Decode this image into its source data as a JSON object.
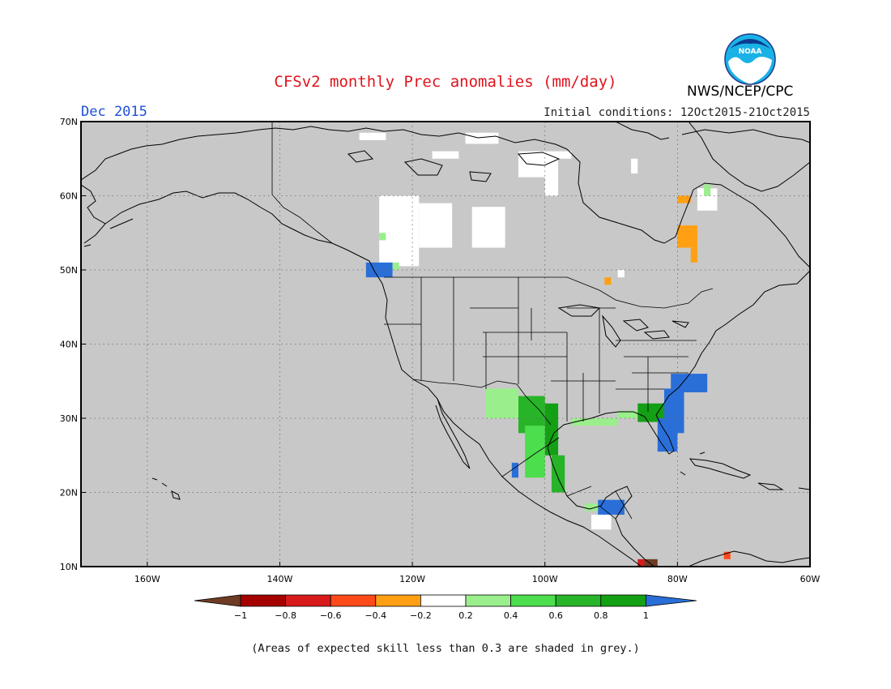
{
  "title": "CFSv2 monthly Prec anomalies (mm/day)",
  "month": "Dec 2015",
  "initial_conditions": "Initial conditions: 12Oct2015-21Oct2015",
  "agency": "NWS/NCEP/CPC",
  "logo_text": "NOAA",
  "footnote": "(Areas of expected skill less than 0.3 are shaded in grey.)",
  "map": {
    "lon_range": [
      -170,
      -60
    ],
    "lat_range": [
      10,
      70
    ],
    "lon_ticks": [
      {
        "v": -160,
        "label": "160W"
      },
      {
        "v": -140,
        "label": "140W"
      },
      {
        "v": -120,
        "label": "120W"
      },
      {
        "v": -100,
        "label": "100W"
      },
      {
        "v": -80,
        "label": "80W"
      },
      {
        "v": -60,
        "label": "60W"
      }
    ],
    "lat_ticks": [
      {
        "v": 10,
        "label": "10N"
      },
      {
        "v": 20,
        "label": "20N"
      },
      {
        "v": 30,
        "label": "30N"
      },
      {
        "v": 40,
        "label": "40N"
      },
      {
        "v": 50,
        "label": "50N"
      },
      {
        "v": 60,
        "label": "60N"
      },
      {
        "v": 70,
        "label": "70N"
      }
    ],
    "grid": true,
    "background_color": "#c8c8c8"
  },
  "colorbar": {
    "bins": [
      {
        "from": -1.0,
        "to": -0.8,
        "color": "#a50000"
      },
      {
        "from": -0.8,
        "to": -0.6,
        "color": "#d81a1a"
      },
      {
        "from": -0.6,
        "to": -0.4,
        "color": "#ff4a1a"
      },
      {
        "from": -0.4,
        "to": -0.2,
        "color": "#ffa014"
      },
      {
        "from": -0.2,
        "to": 0.2,
        "color": "#ffffff"
      },
      {
        "from": 0.2,
        "to": 0.4,
        "color": "#9aef8c"
      },
      {
        "from": 0.4,
        "to": 0.6,
        "color": "#4cde4c"
      },
      {
        "from": 0.6,
        "to": 0.8,
        "color": "#28b428"
      },
      {
        "from": 0.8,
        "to": 1.0,
        "color": "#14a014"
      }
    ],
    "low_color": "#6e3c24",
    "high_color": "#2a6fd8",
    "tick_labels": [
      "−1",
      "−0.8",
      "−0.6",
      "−0.4",
      "−0.2",
      "0.2",
      "0.4",
      "0.6",
      "0.8",
      "1"
    ]
  },
  "anomaly_regions": [
    {
      "region": "Canadian Arctic islands",
      "lon": [
        -128,
        -124
      ],
      "lat": [
        67.5,
        68.5
      ],
      "value": 0.0
    },
    {
      "region": "Canadian Arctic islands",
      "lon": [
        -117,
        -113
      ],
      "lat": [
        65,
        66
      ],
      "value": 0.0
    },
    {
      "region": "Canadian Arctic islands",
      "lon": [
        -112,
        -107
      ],
      "lat": [
        67,
        68.5
      ],
      "value": 0.0
    },
    {
      "region": "Canadian Arctic islands",
      "lon": [
        -104,
        -98
      ],
      "lat": [
        62.5,
        66
      ],
      "value": 0.0
    },
    {
      "region": "Canadian Arctic islands",
      "lon": [
        -98,
        -96
      ],
      "lat": [
        65,
        66
      ],
      "value": 0.0
    },
    {
      "region": "Canadian Arctic islands",
      "lon": [
        -87,
        -86
      ],
      "lat": [
        63,
        65
      ],
      "value": 0.0
    },
    {
      "region": "Northwest Territories",
      "lon": [
        -100,
        -98
      ],
      "lat": [
        60,
        63
      ],
      "value": 0.0
    },
    {
      "region": "Western Canada",
      "lon": [
        -125,
        -119
      ],
      "lat": [
        50.5,
        60
      ],
      "value": 0.0
    },
    {
      "region": "Western Canada",
      "lon": [
        -119,
        -114
      ],
      "lat": [
        53,
        59
      ],
      "value": 0.0
    },
    {
      "region": "Saskatchewan",
      "lon": [
        -111,
        -106
      ],
      "lat": [
        53,
        58.5
      ],
      "value": 0.0
    },
    {
      "region": "British Columbia coast",
      "lon": [
        -125,
        -124
      ],
      "lat": [
        54,
        55
      ],
      "value": 0.3
    },
    {
      "region": "British Columbia coast",
      "lon": [
        -123,
        -122
      ],
      "lat": [
        50,
        51
      ],
      "value": 0.3
    },
    {
      "region": "Vancouver Island",
      "lon": [
        -127,
        -123
      ],
      "lat": [
        49,
        51
      ],
      "value": 1.1
    },
    {
      "region": "Hudson Bay east coast",
      "lon": [
        -77,
        -74
      ],
      "lat": [
        58,
        61
      ],
      "value": 0.0
    },
    {
      "region": "Hudson Bay east coast",
      "lon": [
        -76,
        -75
      ],
      "lat": [
        60,
        61.5
      ],
      "value": 0.3
    },
    {
      "region": "Hudson Bay east coast",
      "lon": [
        -80,
        -78
      ],
      "lat": [
        59,
        60
      ],
      "value": -0.3
    },
    {
      "region": "James Bay",
      "lon": [
        -80,
        -77
      ],
      "lat": [
        53,
        56
      ],
      "value": -0.3
    },
    {
      "region": "James Bay",
      "lon": [
        -78,
        -77
      ],
      "lat": [
        51,
        53
      ],
      "value": -0.3
    },
    {
      "region": "Lake Superior",
      "lon": [
        -91,
        -90
      ],
      "lat": [
        48,
        49
      ],
      "value": -0.3
    },
    {
      "region": "Lake Superior",
      "lon": [
        -89,
        -88
      ],
      "lat": [
        49,
        50
      ],
      "value": 0.0
    },
    {
      "region": "New Mexico / Chihuahua",
      "lon": [
        -109,
        -104
      ],
      "lat": [
        30,
        34
      ],
      "value": 0.3
    },
    {
      "region": "Texas / Coahuila",
      "lon": [
        -104,
        -100
      ],
      "lat": [
        28,
        33
      ],
      "value": 0.7
    },
    {
      "region": "Texas",
      "lon": [
        -100,
        -98
      ],
      "lat": [
        25,
        32
      ],
      "value": 0.9
    },
    {
      "region": "Nuevo Leon / Tamaulipas",
      "lon": [
        -103,
        -100
      ],
      "lat": [
        22,
        29
      ],
      "value": 0.5
    },
    {
      "region": "Sinaloa coast",
      "lon": [
        -105,
        -104
      ],
      "lat": [
        22,
        24
      ],
      "value": 1.1
    },
    {
      "region": "Tamaulipas coast",
      "lon": [
        -99,
        -97
      ],
      "lat": [
        20,
        25
      ],
      "value": 0.7
    },
    {
      "region": "Gulf Coast Louisiana",
      "lon": [
        -96,
        -89
      ],
      "lat": [
        29,
        30
      ],
      "value": 0.3
    },
    {
      "region": "Gulf Coast Mississippi",
      "lon": [
        -89,
        -85
      ],
      "lat": [
        30,
        31
      ],
      "value": 0.3
    },
    {
      "region": "Alabama / Georgia",
      "lon": [
        -86,
        -82
      ],
      "lat": [
        29.5,
        32
      ],
      "value": 0.9
    },
    {
      "region": "South Carolina / Georgia",
      "lon": [
        -82,
        -79
      ],
      "lat": [
        28,
        34
      ],
      "value": 1.1
    },
    {
      "region": "Florida",
      "lon": [
        -83,
        -80
      ],
      "lat": [
        25.5,
        30
      ],
      "value": 1.1
    },
    {
      "region": "North Carolina",
      "lon": [
        -81,
        -75.5
      ],
      "lat": [
        33.5,
        36
      ],
      "value": 1.1
    },
    {
      "region": "Yucatan / Belize",
      "lon": [
        -92,
        -88
      ],
      "lat": [
        17,
        19
      ],
      "value": 1.1
    },
    {
      "region": "Guatemala",
      "lon": [
        -93,
        -90
      ],
      "lat": [
        15,
        17
      ],
      "value": 0.0
    },
    {
      "region": "Yucatan",
      "lon": [
        -94,
        -92
      ],
      "lat": [
        17.5,
        18.5
      ],
      "value": 0.3
    },
    {
      "region": "Costa Rica",
      "lon": [
        -85,
        -83
      ],
      "lat": [
        10,
        11
      ],
      "value": -1.1
    },
    {
      "region": "Costa Rica",
      "lon": [
        -86,
        -85
      ],
      "lat": [
        10,
        11
      ],
      "value": -0.7
    },
    {
      "region": "Venezuela coast",
      "lon": [
        -73,
        -72
      ],
      "lat": [
        11,
        12
      ],
      "value": -0.5
    }
  ]
}
